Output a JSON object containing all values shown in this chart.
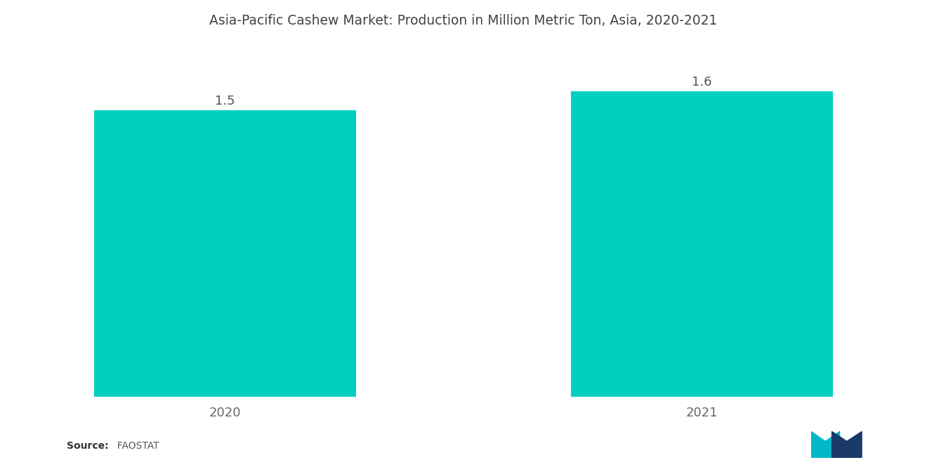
{
  "title": "Asia-Pacific Cashew Market: Production in Million Metric Ton, Asia, 2020-2021",
  "categories": [
    "2020",
    "2021"
  ],
  "values": [
    1.5,
    1.6
  ],
  "bar_color": "#00D0C0",
  "value_labels": [
    "1.5",
    "1.6"
  ],
  "background_color": "#ffffff",
  "title_fontsize": 13.5,
  "label_fontsize": 13,
  "value_fontsize": 13,
  "source_bold": "Source:",
  "source_rest": "  FAOSTAT",
  "ylim": [
    0,
    1.75
  ],
  "bar_width": 0.55,
  "xlim": [
    -0.45,
    1.45
  ]
}
